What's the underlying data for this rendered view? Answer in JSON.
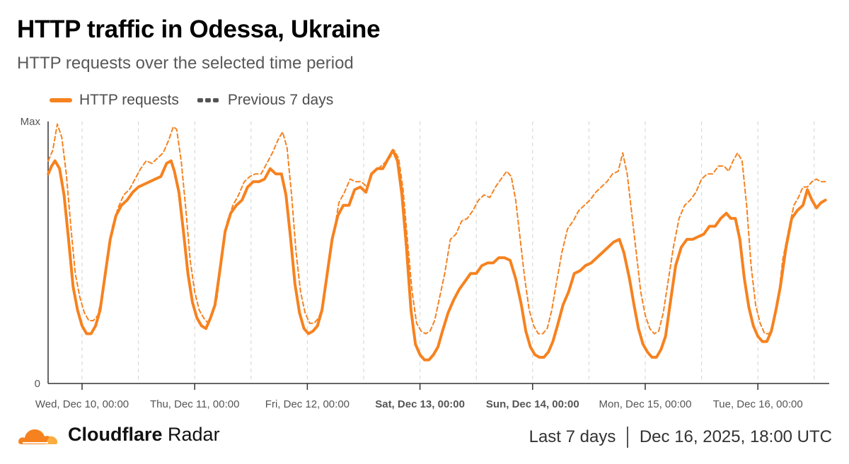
{
  "header": {
    "title": "HTTP traffic in Odessa, Ukraine",
    "subtitle": "HTTP requests over the selected time period"
  },
  "colors": {
    "accent": "#f6821f",
    "dashed": "#555555",
    "grid": "#d9d9d9"
  },
  "chart_data": {
    "type": "line",
    "ylim": [
      0,
      100
    ],
    "y_tick_labels": [
      "Max",
      "0"
    ],
    "grid": true,
    "legend_placement": "top-left",
    "x_tick_labels": [
      {
        "day": 1,
        "label": "Wed, Dec 10, 00:00",
        "bold": false
      },
      {
        "day": 2,
        "label": "Thu, Dec 11, 00:00",
        "bold": false
      },
      {
        "day": 3,
        "label": "Fri, Dec 12, 00:00",
        "bold": false
      },
      {
        "day": 4,
        "label": "Sat, Dec 13, 00:00",
        "bold": true
      },
      {
        "day": 5,
        "label": "Sun, Dec 14, 00:00",
        "bold": true
      },
      {
        "day": 6,
        "label": "Mon, Dec 15, 00:00",
        "bold": false
      },
      {
        "day": 7,
        "label": "Tue, Dec 16, 00:00",
        "bold": false
      }
    ],
    "series": [
      {
        "name": "HTTP requests",
        "style": "solid",
        "color": "#f6821f",
        "points": [
          [
            0.7,
            80
          ],
          [
            0.73,
            83
          ],
          [
            0.76,
            85
          ],
          [
            0.8,
            82
          ],
          [
            0.84,
            72
          ],
          [
            0.88,
            55
          ],
          [
            0.92,
            37
          ],
          [
            0.96,
            28
          ],
          [
            1.0,
            22
          ],
          [
            1.04,
            19
          ],
          [
            1.08,
            19
          ],
          [
            1.12,
            22
          ],
          [
            1.16,
            28
          ],
          [
            1.2,
            40
          ],
          [
            1.25,
            55
          ],
          [
            1.3,
            64
          ],
          [
            1.35,
            68
          ],
          [
            1.4,
            70
          ],
          [
            1.45,
            73
          ],
          [
            1.5,
            75
          ],
          [
            1.55,
            76
          ],
          [
            1.6,
            77
          ],
          [
            1.65,
            78
          ],
          [
            1.7,
            79
          ],
          [
            1.75,
            84
          ],
          [
            1.79,
            85
          ],
          [
            1.82,
            81
          ],
          [
            1.86,
            73
          ],
          [
            1.9,
            58
          ],
          [
            1.94,
            42
          ],
          [
            1.98,
            31
          ],
          [
            2.02,
            25
          ],
          [
            2.06,
            22
          ],
          [
            2.1,
            21
          ],
          [
            2.14,
            25
          ],
          [
            2.18,
            30
          ],
          [
            2.22,
            42
          ],
          [
            2.27,
            58
          ],
          [
            2.32,
            65
          ],
          [
            2.37,
            68
          ],
          [
            2.42,
            70
          ],
          [
            2.47,
            75
          ],
          [
            2.52,
            77
          ],
          [
            2.57,
            77
          ],
          [
            2.62,
            78
          ],
          [
            2.67,
            82
          ],
          [
            2.72,
            80
          ],
          [
            2.77,
            80
          ],
          [
            2.81,
            72
          ],
          [
            2.85,
            56
          ],
          [
            2.89,
            38
          ],
          [
            2.93,
            27
          ],
          [
            2.97,
            21
          ],
          [
            3.01,
            19
          ],
          [
            3.05,
            20
          ],
          [
            3.09,
            22
          ],
          [
            3.13,
            28
          ],
          [
            3.17,
            40
          ],
          [
            3.22,
            55
          ],
          [
            3.27,
            64
          ],
          [
            3.32,
            68
          ],
          [
            3.37,
            68
          ],
          [
            3.42,
            74
          ],
          [
            3.47,
            75
          ],
          [
            3.52,
            73
          ],
          [
            3.57,
            80
          ],
          [
            3.62,
            82
          ],
          [
            3.67,
            82
          ],
          [
            3.72,
            86
          ],
          [
            3.76,
            89
          ],
          [
            3.8,
            85
          ],
          [
            3.84,
            72
          ],
          [
            3.88,
            52
          ],
          [
            3.92,
            28
          ],
          [
            3.96,
            15
          ],
          [
            4.0,
            11
          ],
          [
            4.04,
            9
          ],
          [
            4.08,
            9
          ],
          [
            4.12,
            11
          ],
          [
            4.16,
            14
          ],
          [
            4.2,
            20
          ],
          [
            4.25,
            27
          ],
          [
            4.3,
            32
          ],
          [
            4.35,
            36
          ],
          [
            4.4,
            39
          ],
          [
            4.45,
            42
          ],
          [
            4.5,
            42
          ],
          [
            4.55,
            45
          ],
          [
            4.6,
            46
          ],
          [
            4.65,
            46
          ],
          [
            4.7,
            48
          ],
          [
            4.75,
            48
          ],
          [
            4.8,
            47
          ],
          [
            4.85,
            40
          ],
          [
            4.9,
            30
          ],
          [
            4.94,
            20
          ],
          [
            4.98,
            14
          ],
          [
            5.02,
            11
          ],
          [
            5.06,
            10
          ],
          [
            5.1,
            10
          ],
          [
            5.14,
            12
          ],
          [
            5.18,
            16
          ],
          [
            5.22,
            22
          ],
          [
            5.27,
            30
          ],
          [
            5.32,
            35
          ],
          [
            5.37,
            42
          ],
          [
            5.42,
            43
          ],
          [
            5.47,
            45
          ],
          [
            5.52,
            46
          ],
          [
            5.57,
            48
          ],
          [
            5.62,
            50
          ],
          [
            5.67,
            52
          ],
          [
            5.72,
            54
          ],
          [
            5.77,
            55
          ],
          [
            5.81,
            50
          ],
          [
            5.86,
            40
          ],
          [
            5.9,
            30
          ],
          [
            5.94,
            21
          ],
          [
            5.98,
            15
          ],
          [
            6.02,
            12
          ],
          [
            6.06,
            10
          ],
          [
            6.1,
            10
          ],
          [
            6.14,
            13
          ],
          [
            6.18,
            18
          ],
          [
            6.22,
            30
          ],
          [
            6.27,
            45
          ],
          [
            6.32,
            52
          ],
          [
            6.37,
            55
          ],
          [
            6.42,
            55
          ],
          [
            6.47,
            56
          ],
          [
            6.52,
            57
          ],
          [
            6.57,
            60
          ],
          [
            6.62,
            60
          ],
          [
            6.67,
            63
          ],
          [
            6.72,
            65
          ],
          [
            6.76,
            63
          ],
          [
            6.8,
            63
          ],
          [
            6.84,
            55
          ],
          [
            6.88,
            40
          ],
          [
            6.92,
            29
          ],
          [
            6.96,
            22
          ],
          [
            7.0,
            18
          ],
          [
            7.04,
            16
          ],
          [
            7.08,
            16
          ],
          [
            7.12,
            20
          ],
          [
            7.16,
            28
          ],
          [
            7.2,
            37
          ],
          [
            7.25,
            52
          ],
          [
            7.3,
            63
          ],
          [
            7.35,
            66
          ],
          [
            7.4,
            68
          ],
          [
            7.44,
            74
          ],
          [
            7.48,
            70
          ],
          [
            7.52,
            67
          ],
          [
            7.56,
            69
          ],
          [
            7.6,
            70
          ]
        ]
      },
      {
        "name": "Previous 7 days",
        "style": "dashed",
        "color": "#f6821f",
        "points": [
          [
            0.7,
            85
          ],
          [
            0.74,
            89
          ],
          [
            0.78,
            99
          ],
          [
            0.82,
            94
          ],
          [
            0.86,
            80
          ],
          [
            0.9,
            60
          ],
          [
            0.94,
            42
          ],
          [
            0.98,
            33
          ],
          [
            1.02,
            27
          ],
          [
            1.06,
            24
          ],
          [
            1.1,
            24
          ],
          [
            1.14,
            26
          ],
          [
            1.18,
            34
          ],
          [
            1.22,
            45
          ],
          [
            1.27,
            60
          ],
          [
            1.32,
            67
          ],
          [
            1.37,
            72
          ],
          [
            1.42,
            74
          ],
          [
            1.47,
            78
          ],
          [
            1.52,
            82
          ],
          [
            1.57,
            85
          ],
          [
            1.62,
            84
          ],
          [
            1.67,
            86
          ],
          [
            1.72,
            88
          ],
          [
            1.77,
            93
          ],
          [
            1.81,
            98
          ],
          [
            1.84,
            97
          ],
          [
            1.88,
            85
          ],
          [
            1.92,
            67
          ],
          [
            1.96,
            47
          ],
          [
            2.0,
            35
          ],
          [
            2.04,
            28
          ],
          [
            2.08,
            25
          ],
          [
            2.12,
            23
          ],
          [
            2.16,
            27
          ],
          [
            2.2,
            33
          ],
          [
            2.24,
            50
          ],
          [
            2.29,
            62
          ],
          [
            2.34,
            68
          ],
          [
            2.39,
            72
          ],
          [
            2.44,
            77
          ],
          [
            2.49,
            79
          ],
          [
            2.54,
            80
          ],
          [
            2.59,
            80
          ],
          [
            2.64,
            84
          ],
          [
            2.69,
            88
          ],
          [
            2.74,
            93
          ],
          [
            2.78,
            96
          ],
          [
            2.82,
            90
          ],
          [
            2.86,
            72
          ],
          [
            2.9,
            50
          ],
          [
            2.94,
            35
          ],
          [
            2.98,
            27
          ],
          [
            3.02,
            23
          ],
          [
            3.06,
            23
          ],
          [
            3.1,
            25
          ],
          [
            3.14,
            30
          ],
          [
            3.18,
            42
          ],
          [
            3.23,
            56
          ],
          [
            3.28,
            69
          ],
          [
            3.33,
            73
          ],
          [
            3.38,
            78
          ],
          [
            3.43,
            77
          ],
          [
            3.48,
            77
          ],
          [
            3.53,
            75
          ],
          [
            3.58,
            80
          ],
          [
            3.63,
            82
          ],
          [
            3.68,
            84
          ],
          [
            3.73,
            86
          ],
          [
            3.77,
            89
          ],
          [
            3.81,
            86
          ],
          [
            3.85,
            74
          ],
          [
            3.89,
            54
          ],
          [
            3.93,
            35
          ],
          [
            3.97,
            23
          ],
          [
            4.01,
            20
          ],
          [
            4.05,
            19
          ],
          [
            4.09,
            20
          ],
          [
            4.13,
            24
          ],
          [
            4.17,
            32
          ],
          [
            4.22,
            42
          ],
          [
            4.27,
            55
          ],
          [
            4.32,
            57
          ],
          [
            4.37,
            62
          ],
          [
            4.42,
            63
          ],
          [
            4.47,
            66
          ],
          [
            4.52,
            70
          ],
          [
            4.57,
            72
          ],
          [
            4.62,
            71
          ],
          [
            4.67,
            75
          ],
          [
            4.72,
            78
          ],
          [
            4.77,
            81
          ],
          [
            4.81,
            79
          ],
          [
            4.85,
            70
          ],
          [
            4.89,
            55
          ],
          [
            4.93,
            40
          ],
          [
            4.97,
            28
          ],
          [
            5.01,
            22
          ],
          [
            5.05,
            19
          ],
          [
            5.09,
            19
          ],
          [
            5.13,
            21
          ],
          [
            5.17,
            28
          ],
          [
            5.21,
            38
          ],
          [
            5.26,
            50
          ],
          [
            5.31,
            59
          ],
          [
            5.36,
            62
          ],
          [
            5.41,
            66
          ],
          [
            5.46,
            68
          ],
          [
            5.51,
            70
          ],
          [
            5.56,
            73
          ],
          [
            5.61,
            75
          ],
          [
            5.66,
            77
          ],
          [
            5.71,
            80
          ],
          [
            5.76,
            81
          ],
          [
            5.8,
            88
          ],
          [
            5.84,
            80
          ],
          [
            5.88,
            65
          ],
          [
            5.92,
            50
          ],
          [
            5.96,
            35
          ],
          [
            6.0,
            26
          ],
          [
            6.04,
            21
          ],
          [
            6.08,
            19
          ],
          [
            6.12,
            20
          ],
          [
            6.16,
            27
          ],
          [
            6.2,
            38
          ],
          [
            6.25,
            52
          ],
          [
            6.3,
            63
          ],
          [
            6.35,
            68
          ],
          [
            6.4,
            70
          ],
          [
            6.45,
            73
          ],
          [
            6.5,
            78
          ],
          [
            6.55,
            80
          ],
          [
            6.6,
            80
          ],
          [
            6.65,
            83
          ],
          [
            6.7,
            83
          ],
          [
            6.74,
            81
          ],
          [
            6.78,
            85
          ],
          [
            6.82,
            88
          ],
          [
            6.86,
            85
          ],
          [
            6.9,
            68
          ],
          [
            6.94,
            45
          ],
          [
            6.98,
            30
          ],
          [
            7.02,
            23
          ],
          [
            7.06,
            19
          ],
          [
            7.1,
            19
          ],
          [
            7.14,
            23
          ],
          [
            7.18,
            32
          ],
          [
            7.22,
            47
          ],
          [
            7.27,
            58
          ],
          [
            7.32,
            68
          ],
          [
            7.36,
            71
          ],
          [
            7.4,
            75
          ],
          [
            7.44,
            75
          ],
          [
            7.48,
            77
          ],
          [
            7.52,
            78
          ],
          [
            7.56,
            77
          ],
          [
            7.6,
            77
          ]
        ]
      }
    ]
  },
  "footer": {
    "brand_bold": "Cloudflare",
    "brand_rest": " Radar",
    "range_label": "Last 7 days",
    "timestamp": "Dec 16, 2025, 18:00 UTC"
  }
}
